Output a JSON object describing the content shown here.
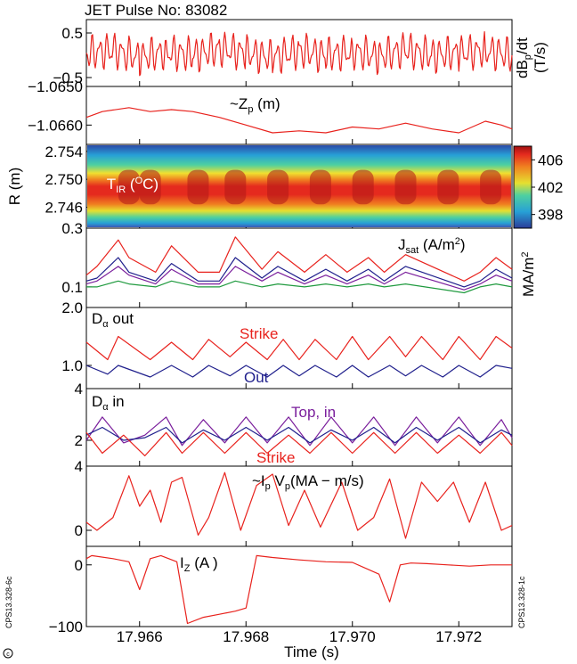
{
  "title": "JET Pulse No: 83082",
  "xlabel": "Time (s)",
  "xticks": [
    "17.966",
    "17.968",
    "17.970",
    "17.972"
  ],
  "xtick_values": [
    17.966,
    17.968,
    17.97,
    17.972
  ],
  "xlim": [
    17.965,
    17.973
  ],
  "side_codes": {
    "left": "CPS13.328-6c",
    "right": "CPS13.328-1c"
  },
  "colors": {
    "red": "#e8221d",
    "blue": "#1f1f8c",
    "purple": "#7a1e9c",
    "green": "#1f9a3e",
    "axis": "#000000"
  },
  "panels": [
    {
      "id": "dbdt",
      "ylabel": "dB",
      "ylabel_sub": "p",
      "ylabel_tail": "/dt",
      "ylabel_units": "(T/s)",
      "yticks": [
        "0.5",
        "−0.5"
      ],
      "ytick_values": [
        0.5,
        -0.5
      ],
      "ylim": [
        -0.7,
        0.8
      ]
    },
    {
      "id": "zp",
      "annot_main": "~Z",
      "annot_sub": "p",
      "annot_tail": " (m)",
      "yticks": [
        "−1.0650",
        "−1.0660"
      ],
      "ytick_values": [
        -1.065,
        -1.066
      ],
      "ylim": [
        -1.0665,
        -1.065
      ]
    },
    {
      "id": "tir",
      "ylabel": "R (m)",
      "annot_main": "T",
      "annot_sub": "IR",
      "annot_tail": " (",
      "annot_sup": "O",
      "annot_end": "C)",
      "yticks": [
        "2.754",
        "2.750",
        "2.746"
      ],
      "ytick_values": [
        2.754,
        2.75,
        2.746
      ],
      "ylim": [
        2.743,
        2.755
      ],
      "colorbar": {
        "ticks": [
          "406",
          "402",
          "398"
        ],
        "tick_values": [
          406,
          402,
          398
        ],
        "range": [
          396,
          408
        ]
      }
    },
    {
      "id": "jsat",
      "annot_main": "J",
      "annot_sub": "sat",
      "annot_tail": " (A/m",
      "annot_sup": "2",
      "annot_end": ")",
      "side_label": "MA/m",
      "side_sup": "2",
      "yticks": [
        "0.3",
        "0.1"
      ],
      "ytick_values": [
        0.3,
        0.1
      ],
      "ylim": [
        0.03,
        0.3
      ]
    },
    {
      "id": "daout",
      "annot_main": "D",
      "annot_sub": "α",
      "annot_tail": " out",
      "label_strike": "Strike",
      "label_out": "Out",
      "yticks": [
        "2.0",
        "1.0"
      ],
      "ytick_values": [
        2.0,
        1.0
      ],
      "ylim": [
        0.6,
        2.0
      ]
    },
    {
      "id": "dain",
      "annot_main": "D",
      "annot_sub": "α",
      "annot_tail": " in",
      "label_top": "Top, in",
      "label_strike": "Strike",
      "yticks": [
        "4",
        "2"
      ],
      "ytick_values": [
        4,
        2
      ],
      "ylim": [
        1.0,
        4.0
      ]
    },
    {
      "id": "ipvp",
      "annot_main": "~I",
      "annot_sub": "p",
      "annot_tail": " V",
      "annot_sub2": "p",
      "annot_end": "(MA − m/s)",
      "yticks": [
        "4",
        "0"
      ],
      "ytick_values": [
        4,
        0
      ],
      "ylim": [
        -1.0,
        4.0
      ]
    },
    {
      "id": "iz",
      "annot_main": "I",
      "annot_sub": "Z",
      "annot_tail": " (A )",
      "yticks": [
        "0",
        "−100"
      ],
      "ytick_values": [
        0,
        -100
      ],
      "ylim": [
        -100,
        30
      ]
    }
  ],
  "chart_data": [
    {
      "type": "line",
      "panel": "dbdt",
      "title": "JET Pulse No: 83082",
      "xlabel": "Time (s)",
      "ylabel": "dBp/dt (T/s)",
      "xlim": [
        17.965,
        17.973
      ],
      "ylim": [
        -0.7,
        0.8
      ],
      "series": [
        {
          "x": [
            17.965,
            17.9655,
            17.966,
            17.9665,
            17.967,
            17.9675,
            17.968,
            17.9685,
            17.969,
            17.9695,
            17.97,
            17.9705,
            17.971,
            17.9715,
            17.972,
            17.9725,
            17.973
          ],
          "values": [
            0.05,
            0.1,
            -0.05,
            0.08,
            0.0,
            0.15,
            0.05,
            -0.05,
            0.1,
            0.0,
            0.08,
            -0.02,
            0.12,
            0.0,
            0.05,
            0.1,
            0.0
          ]
        }
      ]
    },
    {
      "type": "line",
      "panel": "zp",
      "xlabel": "Time (s)",
      "ylabel": "~Zp (m)",
      "xlim": [
        17.965,
        17.973
      ],
      "ylim": [
        -1.0665,
        -1.065
      ],
      "series": [
        {
          "x": [
            17.965,
            17.9653,
            17.9658,
            17.9662,
            17.9666,
            17.967,
            17.9675,
            17.968,
            17.9685,
            17.969,
            17.9695,
            17.97,
            17.9705,
            17.971,
            17.9715,
            17.972,
            17.9725,
            17.9728,
            17.973
          ],
          "values": [
            -1.0658,
            -1.06565,
            -1.06555,
            -1.06565,
            -1.0656,
            -1.06565,
            -1.0658,
            -1.066,
            -1.0662,
            -1.06615,
            -1.0662,
            -1.06605,
            -1.0661,
            -1.06595,
            -1.0661,
            -1.0662,
            -1.0659,
            -1.066,
            -1.0661
          ]
        }
      ]
    },
    {
      "type": "heatmap",
      "panel": "tir",
      "xlabel": "Time (s)",
      "ylabel": "R (m)",
      "xlim": [
        17.965,
        17.973
      ],
      "ylim": [
        2.743,
        2.755
      ],
      "zlabel": "TIR (OC)",
      "zlim": [
        396,
        408
      ],
      "colorbar_ticks": [
        398,
        402,
        406
      ]
    },
    {
      "type": "line",
      "panel": "jsat",
      "xlabel": "Time (s)",
      "ylabel": "Jsat (A/m2)",
      "xlim": [
        17.965,
        17.973
      ],
      "ylim": [
        0.03,
        0.3
      ],
      "series": [
        {
          "color": "red",
          "x": [
            17.965,
            17.9652,
            17.9656,
            17.9658,
            17.9663,
            17.9666,
            17.9671,
            17.9675,
            17.9678,
            17.9683,
            17.9686,
            17.9691,
            17.9695,
            17.9699,
            17.9703,
            17.9706,
            17.971,
            17.9721,
            17.9724,
            17.9727,
            17.973
          ],
          "values": [
            0.14,
            0.17,
            0.26,
            0.2,
            0.15,
            0.24,
            0.15,
            0.15,
            0.27,
            0.16,
            0.22,
            0.15,
            0.21,
            0.15,
            0.2,
            0.15,
            0.21,
            0.12,
            0.15,
            0.2,
            0.16
          ]
        },
        {
          "color": "blue",
          "x": [
            17.965,
            17.9652,
            17.9656,
            17.9658,
            17.9663,
            17.9666,
            17.9671,
            17.9675,
            17.9678,
            17.9683,
            17.9686,
            17.9691,
            17.9695,
            17.9699,
            17.9703,
            17.9706,
            17.971,
            17.9721,
            17.9724,
            17.9727,
            17.973
          ],
          "values": [
            0.12,
            0.13,
            0.2,
            0.15,
            0.12,
            0.18,
            0.12,
            0.12,
            0.2,
            0.13,
            0.17,
            0.12,
            0.16,
            0.12,
            0.16,
            0.12,
            0.17,
            0.1,
            0.12,
            0.16,
            0.13
          ]
        },
        {
          "color": "purple",
          "x": [
            17.965,
            17.9652,
            17.9656,
            17.9658,
            17.9663,
            17.9666,
            17.9671,
            17.9675,
            17.9678,
            17.9683,
            17.9686,
            17.9691,
            17.9695,
            17.9699,
            17.9703,
            17.9706,
            17.971,
            17.9721,
            17.9724,
            17.9727,
            17.973
          ],
          "values": [
            0.11,
            0.12,
            0.17,
            0.14,
            0.11,
            0.16,
            0.11,
            0.11,
            0.17,
            0.12,
            0.15,
            0.11,
            0.14,
            0.11,
            0.14,
            0.11,
            0.15,
            0.09,
            0.11,
            0.14,
            0.12
          ]
        },
        {
          "color": "green",
          "x": [
            17.965,
            17.9652,
            17.9656,
            17.9658,
            17.9663,
            17.9666,
            17.9671,
            17.9675,
            17.9678,
            17.9683,
            17.9686,
            17.9691,
            17.9695,
            17.9699,
            17.9703,
            17.9706,
            17.971,
            17.9721,
            17.9724,
            17.9727,
            17.973
          ],
          "values": [
            0.1,
            0.1,
            0.12,
            0.11,
            0.1,
            0.12,
            0.1,
            0.1,
            0.12,
            0.1,
            0.11,
            0.1,
            0.11,
            0.1,
            0.11,
            0.1,
            0.11,
            0.08,
            0.1,
            0.11,
            0.1
          ]
        }
      ]
    },
    {
      "type": "line",
      "panel": "daout",
      "xlabel": "Time (s)",
      "ylabel": "Dα out",
      "xlim": [
        17.965,
        17.973
      ],
      "ylim": [
        0.6,
        2.0
      ],
      "series": [
        {
          "name": "Strike",
          "color": "red",
          "x": [
            17.965,
            17.9654,
            17.9656,
            17.9662,
            17.9666,
            17.967,
            17.9673,
            17.9677,
            17.968,
            17.9684,
            17.9687,
            17.969,
            17.9693,
            17.9697,
            17.97,
            17.9703,
            17.9707,
            17.971,
            17.9713,
            17.9717,
            17.972,
            17.9724,
            17.9727,
            17.973
          ],
          "values": [
            1.4,
            1.1,
            1.5,
            1.1,
            1.4,
            1.1,
            1.45,
            1.15,
            1.4,
            1.1,
            1.45,
            1.1,
            1.45,
            1.1,
            1.5,
            1.1,
            1.5,
            1.15,
            1.5,
            1.1,
            1.5,
            1.1,
            1.5,
            1.3
          ]
        },
        {
          "name": "Out",
          "color": "blue",
          "x": [
            17.965,
            17.9654,
            17.9656,
            17.9662,
            17.9666,
            17.967,
            17.9673,
            17.9677,
            17.968,
            17.9684,
            17.9687,
            17.969,
            17.9693,
            17.9697,
            17.97,
            17.9703,
            17.9707,
            17.971,
            17.9713,
            17.9717,
            17.972,
            17.9724,
            17.9727,
            17.973
          ],
          "values": [
            1.0,
            0.85,
            1.0,
            0.8,
            1.0,
            0.8,
            1.0,
            0.82,
            1.0,
            0.8,
            1.0,
            0.82,
            1.0,
            0.8,
            1.0,
            0.8,
            1.0,
            0.82,
            1.0,
            0.8,
            1.0,
            0.8,
            1.0,
            0.95
          ]
        }
      ]
    },
    {
      "type": "line",
      "panel": "dain",
      "xlabel": "Time (s)",
      "ylabel": "Dα in",
      "xlim": [
        17.965,
        17.973
      ],
      "ylim": [
        1.0,
        4.0
      ],
      "series": [
        {
          "name": "Top, in",
          "color": "purple",
          "x": [
            17.965,
            17.9653,
            17.9657,
            17.9661,
            17.9665,
            17.9668,
            17.9672,
            17.9676,
            17.968,
            17.9684,
            17.9688,
            17.9692,
            17.9696,
            17.97,
            17.9704,
            17.9708,
            17.9712,
            17.9716,
            17.972,
            17.9724,
            17.9728,
            17.973
          ],
          "values": [
            2.0,
            2.9,
            1.9,
            2.2,
            2.9,
            1.8,
            2.8,
            1.9,
            2.9,
            1.9,
            2.9,
            1.8,
            2.9,
            1.9,
            2.9,
            1.8,
            2.9,
            1.9,
            2.9,
            1.8,
            2.8,
            2.1
          ]
        },
        {
          "color": "blue",
          "x": [
            17.965,
            17.9653,
            17.9657,
            17.9661,
            17.9665,
            17.9668,
            17.9672,
            17.9676,
            17.968,
            17.9684,
            17.9688,
            17.9692,
            17.9696,
            17.97,
            17.9704,
            17.9708,
            17.9712,
            17.9716,
            17.972,
            17.9724,
            17.9728,
            17.973
          ],
          "values": [
            2.2,
            2.5,
            2.0,
            2.1,
            2.5,
            1.9,
            2.4,
            2.0,
            2.5,
            2.0,
            2.5,
            1.9,
            2.4,
            2.0,
            2.5,
            1.9,
            2.5,
            2.0,
            2.5,
            1.9,
            2.4,
            2.2
          ]
        },
        {
          "name": "Strike",
          "color": "red",
          "x": [
            17.965,
            17.9653,
            17.9657,
            17.9661,
            17.9665,
            17.9668,
            17.9672,
            17.9676,
            17.968,
            17.9684,
            17.9688,
            17.9692,
            17.9696,
            17.97,
            17.9704,
            17.9708,
            17.9712,
            17.9716,
            17.972,
            17.9724,
            17.9728,
            17.973
          ],
          "values": [
            2.3,
            1.5,
            2.2,
            1.4,
            2.3,
            1.5,
            2.3,
            1.5,
            2.3,
            1.5,
            2.2,
            1.5,
            2.3,
            1.5,
            2.3,
            1.5,
            2.3,
            1.5,
            2.2,
            1.5,
            2.3,
            1.8
          ]
        }
      ]
    },
    {
      "type": "line",
      "panel": "ipvp",
      "xlabel": "Time (s)",
      "ylabel": "~Ip Vp (MA − m/s)",
      "xlim": [
        17.965,
        17.973
      ],
      "ylim": [
        -1.0,
        4.0
      ],
      "series": [
        {
          "color": "red",
          "x": [
            17.965,
            17.9652,
            17.9655,
            17.9658,
            17.966,
            17.9662,
            17.9664,
            17.9666,
            17.9668,
            17.9671,
            17.9673,
            17.9676,
            17.9679,
            17.9682,
            17.9685,
            17.9688,
            17.9691,
            17.9694,
            17.9698,
            17.9701,
            17.9704,
            17.9707,
            17.971,
            17.9713,
            17.9716,
            17.9719,
            17.9722,
            17.9725,
            17.9728,
            17.973
          ],
          "values": [
            0.5,
            0.0,
            0.8,
            3.4,
            1.5,
            2.5,
            0.5,
            3.0,
            3.3,
            -0.3,
            0.8,
            3.6,
            0.0,
            2.8,
            3.5,
            0.3,
            2.5,
            0.2,
            3.0,
            0.0,
            0.8,
            3.2,
            -0.5,
            3.0,
            1.8,
            3.0,
            0.5,
            3.0,
            0.0,
            0.3
          ]
        }
      ]
    },
    {
      "type": "line",
      "panel": "iz",
      "xlabel": "Time (s)",
      "ylabel": "IZ (A )",
      "xlim": [
        17.965,
        17.973
      ],
      "ylim": [
        -100,
        30
      ],
      "series": [
        {
          "color": "red",
          "x": [
            17.965,
            17.9651,
            17.9655,
            17.9658,
            17.966,
            17.9662,
            17.9664,
            17.9667,
            17.9669,
            17.9672,
            17.9675,
            17.9678,
            17.968,
            17.9682,
            17.9685,
            17.969,
            17.9695,
            17.97,
            17.9705,
            17.9707,
            17.9709,
            17.9711,
            17.9714,
            17.9718,
            17.9722,
            17.9726,
            17.973
          ],
          "values": [
            10,
            15,
            10,
            5,
            -40,
            10,
            15,
            5,
            -95,
            -85,
            -80,
            -75,
            -70,
            15,
            12,
            8,
            5,
            4,
            -15,
            -60,
            0,
            3,
            2,
            0,
            -2,
            0,
            0
          ]
        }
      ]
    }
  ]
}
